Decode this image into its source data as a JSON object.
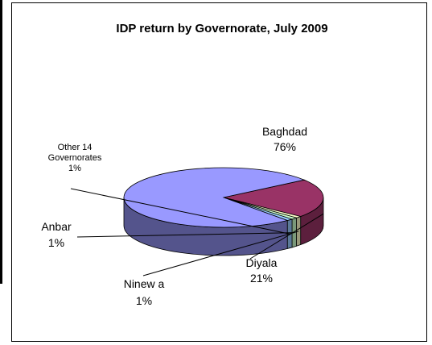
{
  "chart_data": {
    "type": "pie",
    "title": "IDP return by Governorate, July 2009",
    "categories": [
      "Baghdad",
      "Diyala",
      "Ninewa",
      "Anbar",
      "Other 14 Governorates"
    ],
    "values": [
      76,
      21,
      1,
      1,
      1
    ],
    "unit": "%",
    "colors": {
      "Baghdad": "#9999ff",
      "Diyala": "#993366",
      "Ninewa": "#ffffcc",
      "Anbar": "#ccffcc",
      "Other 14 Governorates": "#99ccff"
    },
    "labels": [
      {
        "name": "Baghdad",
        "lines": [
          "Baghdad",
          "76%"
        ]
      },
      {
        "name": "Diyala",
        "lines": [
          "Diyala",
          "21%"
        ]
      },
      {
        "name": "Ninewa",
        "lines": [
          "Ninew a",
          "1%"
        ]
      },
      {
        "name": "Anbar",
        "lines": [
          "Anbar",
          "1%"
        ]
      },
      {
        "name": "Other 14 Governorates",
        "lines": [
          "Other 14",
          "Governorates",
          "1%"
        ]
      }
    ]
  }
}
